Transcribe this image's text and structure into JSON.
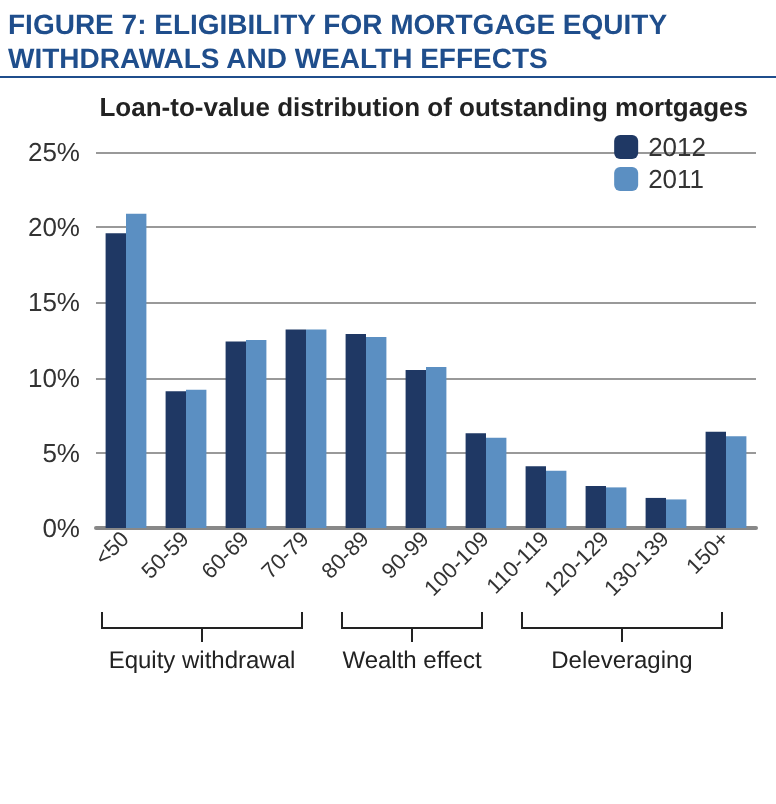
{
  "chart_data": {
    "type": "bar",
    "title": "FIGURE 7: ELIGIBILITY FOR MORTGAGE EQUITY WITHDRAWALS AND WEALTH EFFECTS",
    "subtitle": "Loan-to-value distribution of outstanding mortgages",
    "categories": [
      "<50",
      "50-59",
      "60-69",
      "70-79",
      "80-89",
      "90-99",
      "100-109",
      "110-119",
      "120-129",
      "130-139",
      "150+"
    ],
    "series": [
      {
        "name": "2012",
        "color": "#1f3864",
        "values": [
          19.6,
          9.1,
          12.4,
          13.2,
          12.9,
          10.5,
          6.3,
          4.1,
          2.8,
          2.0,
          6.4
        ]
      },
      {
        "name": "2011",
        "color": "#5b8fc2",
        "values": [
          20.9,
          9.2,
          12.5,
          13.2,
          12.7,
          10.7,
          6.0,
          3.8,
          2.7,
          1.9,
          6.1
        ]
      }
    ],
    "ylim": [
      0,
      25
    ],
    "yticks": [
      {
        "value": 0,
        "label": "0%"
      },
      {
        "value": 5,
        "label": "5%"
      },
      {
        "value": 10,
        "label": "10%"
      },
      {
        "value": 15,
        "label": "15%"
      },
      {
        "value": 20,
        "label": "20%"
      },
      {
        "value": 25,
        "label": "25%"
      }
    ],
    "annotations": [
      "Equity withdrawal",
      "Wealth effect",
      "Deleveraging"
    ],
    "grid": "y",
    "legend": "top right"
  }
}
